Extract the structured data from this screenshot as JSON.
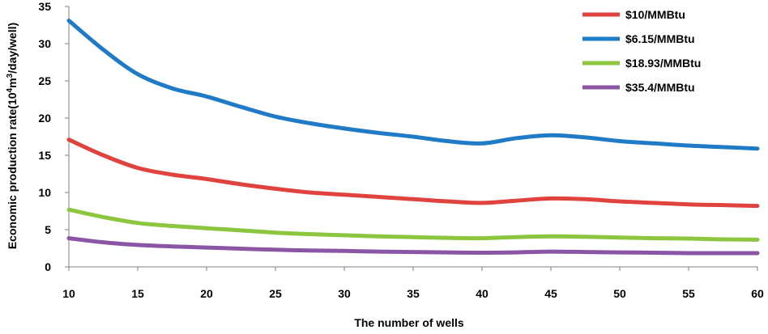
{
  "chart_data": {
    "type": "line",
    "title": "",
    "xlabel": "The number of wells",
    "ylabel_parts": [
      "Economic production rate(10",
      "4",
      "m",
      "3",
      "/day/well)"
    ],
    "x_ticks": [
      "10",
      "15",
      "20",
      "25",
      "30",
      "35",
      "40",
      "45",
      "50",
      "55",
      "60"
    ],
    "y_ticks": [
      "0",
      "5",
      "10",
      "15",
      "20",
      "25",
      "30",
      "35"
    ],
    "xlim": [
      10,
      60
    ],
    "ylim": [
      0,
      35
    ],
    "grid": false,
    "legend_position": "top-right",
    "series": [
      {
        "name": "$10/MMBtu",
        "color": "#e0423e",
        "x": [
          10,
          12.5,
          15,
          17.5,
          20,
          22.5,
          25,
          27.5,
          30,
          32.5,
          35,
          37.5,
          40,
          42.5,
          45,
          47.5,
          50,
          52.5,
          55,
          57.5,
          60
        ],
        "y": [
          17.1,
          15.0,
          13.3,
          12.4,
          11.8,
          11.1,
          10.5,
          10.0,
          9.7,
          9.4,
          9.1,
          8.8,
          8.6,
          8.9,
          9.2,
          9.1,
          8.8,
          8.6,
          8.4,
          8.3,
          8.2
        ]
      },
      {
        "name": "$6.15/MMBtu",
        "color": "#1f7bc6",
        "x": [
          10,
          12.5,
          15,
          17.5,
          20,
          22.5,
          25,
          27.5,
          30,
          32.5,
          35,
          37.5,
          40,
          42.5,
          45,
          47.5,
          50,
          52.5,
          55,
          57.5,
          60
        ],
        "y": [
          33.1,
          29.2,
          25.9,
          24.0,
          22.9,
          21.5,
          20.2,
          19.3,
          18.6,
          18.0,
          17.5,
          16.9,
          16.6,
          17.3,
          17.7,
          17.4,
          16.9,
          16.6,
          16.3,
          16.1,
          15.9
        ]
      },
      {
        "name": "$18.93/MMBtu",
        "color": "#8cc63f",
        "x": [
          10,
          12.5,
          15,
          17.5,
          20,
          22.5,
          25,
          27.5,
          30,
          32.5,
          35,
          37.5,
          40,
          42.5,
          45,
          47.5,
          50,
          52.5,
          55,
          57.5,
          60
        ],
        "y": [
          7.7,
          6.7,
          5.9,
          5.5,
          5.2,
          4.9,
          4.6,
          4.4,
          4.25,
          4.1,
          4.0,
          3.9,
          3.85,
          4.0,
          4.1,
          4.05,
          3.95,
          3.85,
          3.8,
          3.7,
          3.65
        ]
      },
      {
        "name": "$35.4/MMBtu",
        "color": "#8a55a5",
        "x": [
          10,
          12.5,
          15,
          17.5,
          20,
          22.5,
          25,
          27.5,
          30,
          32.5,
          35,
          37.5,
          40,
          42.5,
          45,
          47.5,
          50,
          52.5,
          55,
          57.5,
          60
        ],
        "y": [
          3.85,
          3.3,
          2.95,
          2.75,
          2.6,
          2.45,
          2.3,
          2.2,
          2.15,
          2.05,
          2.0,
          1.95,
          1.9,
          1.95,
          2.05,
          2.0,
          1.95,
          1.9,
          1.85,
          1.85,
          1.85
        ]
      }
    ]
  }
}
